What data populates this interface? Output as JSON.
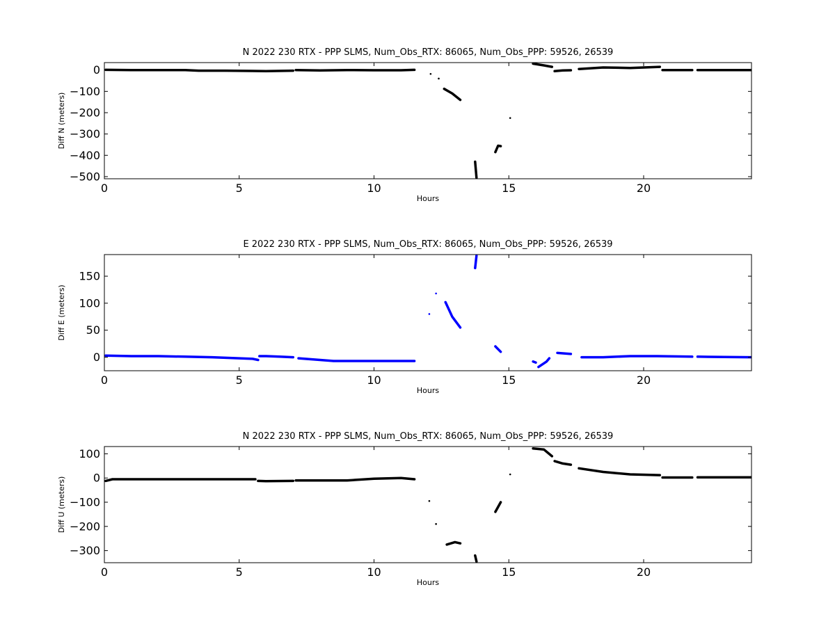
{
  "chart_data": [
    {
      "type": "scatter",
      "title": "N 2022 230 RTX - PPP  SLMS, Num_Obs_RTX: 86065, Num_Obs_PPP: 59526, 26539",
      "xlabel": "Hours",
      "ylabel": "Diff N (meters)",
      "xlim": [
        0,
        24
      ],
      "ylim": [
        -510,
        35
      ],
      "xticks": [
        0,
        5,
        10,
        15,
        20
      ],
      "yticks": [
        0,
        -100,
        -200,
        -300,
        -400,
        -500
      ],
      "color": "#000000",
      "grid": false,
      "legend": "none",
      "segments": [
        {
          "x": [
            0.05,
            1.0,
            2.0,
            3.0,
            3.5,
            4.5,
            5.5,
            6.0,
            7.0
          ],
          "y": [
            1,
            0,
            0,
            0,
            -3,
            -3,
            -4,
            -5,
            -3
          ]
        },
        {
          "x": [
            7.1,
            8.0,
            9.0,
            10.0,
            11.0,
            11.5
          ],
          "y": [
            0,
            -2,
            0,
            -1,
            -1,
            1
          ]
        },
        {
          "x": [
            12.6,
            12.9,
            13.2
          ],
          "y": [
            -88,
            -110,
            -140
          ]
        },
        {
          "x": [
            13.75,
            13.8
          ],
          "y": [
            -430,
            -505
          ]
        },
        {
          "x": [
            14.5,
            14.6,
            14.7
          ],
          "y": [
            -385,
            -355,
            -357
          ]
        },
        {
          "x": [
            15.9,
            16.3,
            16.6
          ],
          "y": [
            30,
            22,
            15
          ]
        },
        {
          "x": [
            16.7,
            17.0,
            17.3
          ],
          "y": [
            -5,
            -2,
            -1
          ]
        },
        {
          "x": [
            17.6,
            18.5,
            19.5,
            20.6
          ],
          "y": [
            5,
            12,
            10,
            15
          ]
        },
        {
          "x": [
            20.7,
            21.8
          ],
          "y": [
            0,
            0
          ]
        },
        {
          "x": [
            22.0,
            24.0
          ],
          "y": [
            0,
            0
          ]
        }
      ],
      "points": [
        {
          "x": 12.1,
          "y": -18
        },
        {
          "x": 12.4,
          "y": -40
        },
        {
          "x": 15.05,
          "y": -225
        }
      ]
    },
    {
      "type": "scatter",
      "title": "E 2022 230 RTX - PPP  SLMS, Num_Obs_RTX: 86065, Num_Obs_PPP: 59526, 26539",
      "xlabel": "Hours",
      "ylabel": "Diff E (meters)",
      "xlim": [
        0,
        24
      ],
      "ylim": [
        -25,
        190
      ],
      "xticks": [
        0,
        5,
        10,
        15,
        20
      ],
      "yticks": [
        0,
        50,
        100,
        150
      ],
      "color": "#0000ff",
      "grid": false,
      "legend": "none",
      "segments": [
        {
          "x": [
            0.05,
            1.0,
            2.0,
            3.0,
            4.0,
            4.5,
            5.0,
            5.5,
            5.7
          ],
          "y": [
            3,
            2,
            2,
            1,
            0,
            -1,
            -2,
            -3,
            -5
          ]
        },
        {
          "x": [
            5.75,
            6.0,
            6.5,
            7.0
          ],
          "y": [
            2,
            2,
            1,
            0
          ]
        },
        {
          "x": [
            7.2,
            8.0,
            8.5,
            9.5,
            10.5,
            11.5
          ],
          "y": [
            -2,
            -5,
            -7,
            -7,
            -7,
            -7
          ]
        },
        {
          "x": [
            12.65,
            12.9,
            13.2
          ],
          "y": [
            102,
            75,
            55
          ]
        },
        {
          "x": [
            13.75,
            13.8
          ],
          "y": [
            165,
            188
          ]
        },
        {
          "x": [
            14.5,
            14.7
          ],
          "y": [
            20,
            10
          ]
        },
        {
          "x": [
            15.9,
            16.0
          ],
          "y": [
            -8,
            -10
          ]
        },
        {
          "x": [
            16.1,
            16.4,
            16.5
          ],
          "y": [
            -18,
            -8,
            -2
          ]
        },
        {
          "x": [
            16.8,
            17.3
          ],
          "y": [
            8,
            6
          ]
        },
        {
          "x": [
            17.7,
            18.5,
            19.5,
            20.5,
            21.8
          ],
          "y": [
            0,
            0,
            2,
            2,
            1
          ]
        },
        {
          "x": [
            22.0,
            24.0
          ],
          "y": [
            1,
            0
          ]
        }
      ],
      "points": [
        {
          "x": 12.05,
          "y": 80
        },
        {
          "x": 12.3,
          "y": 118
        }
      ]
    },
    {
      "type": "scatter",
      "title": "N 2022 230 RTX - PPP  SLMS, Num_Obs_RTX: 86065, Num_Obs_PPP: 59526, 26539",
      "xlabel": "Hours",
      "ylabel": "Diff U (meters)",
      "xlim": [
        0,
        24
      ],
      "ylim": [
        -350,
        130
      ],
      "xticks": [
        0,
        5,
        10,
        15,
        20
      ],
      "yticks": [
        100,
        0,
        -100,
        -200,
        -300
      ],
      "color": "#000000",
      "grid": false,
      "legend": "none",
      "segments": [
        {
          "x": [
            0.05,
            0.3,
            1.0,
            3.0,
            5.0,
            5.6
          ],
          "y": [
            -12,
            -5,
            -5,
            -5,
            -5,
            -5
          ]
        },
        {
          "x": [
            5.7,
            6.0,
            7.0
          ],
          "y": [
            -12,
            -13,
            -12
          ]
        },
        {
          "x": [
            7.1,
            8.0,
            9.0,
            10.0,
            11.0,
            11.5
          ],
          "y": [
            -10,
            -10,
            -10,
            -3,
            0,
            -5
          ]
        },
        {
          "x": [
            12.7,
            13.0,
            13.2
          ],
          "y": [
            -275,
            -265,
            -270
          ]
        },
        {
          "x": [
            13.75,
            13.8
          ],
          "y": [
            -320,
            -345
          ]
        },
        {
          "x": [
            14.5,
            14.7
          ],
          "y": [
            -140,
            -100
          ]
        },
        {
          "x": [
            15.9,
            16.3,
            16.6
          ],
          "y": [
            122,
            118,
            90
          ]
        },
        {
          "x": [
            16.7,
            17.0,
            17.3
          ],
          "y": [
            70,
            60,
            55
          ]
        },
        {
          "x": [
            17.6,
            18.5,
            19.5,
            20.6
          ],
          "y": [
            40,
            25,
            15,
            12
          ]
        },
        {
          "x": [
            20.7,
            21.8
          ],
          "y": [
            2,
            2
          ]
        },
        {
          "x": [
            22.0,
            24.0
          ],
          "y": [
            3,
            3
          ]
        }
      ],
      "points": [
        {
          "x": 12.05,
          "y": -95
        },
        {
          "x": 12.3,
          "y": -190
        },
        {
          "x": 15.05,
          "y": 15
        }
      ]
    }
  ]
}
